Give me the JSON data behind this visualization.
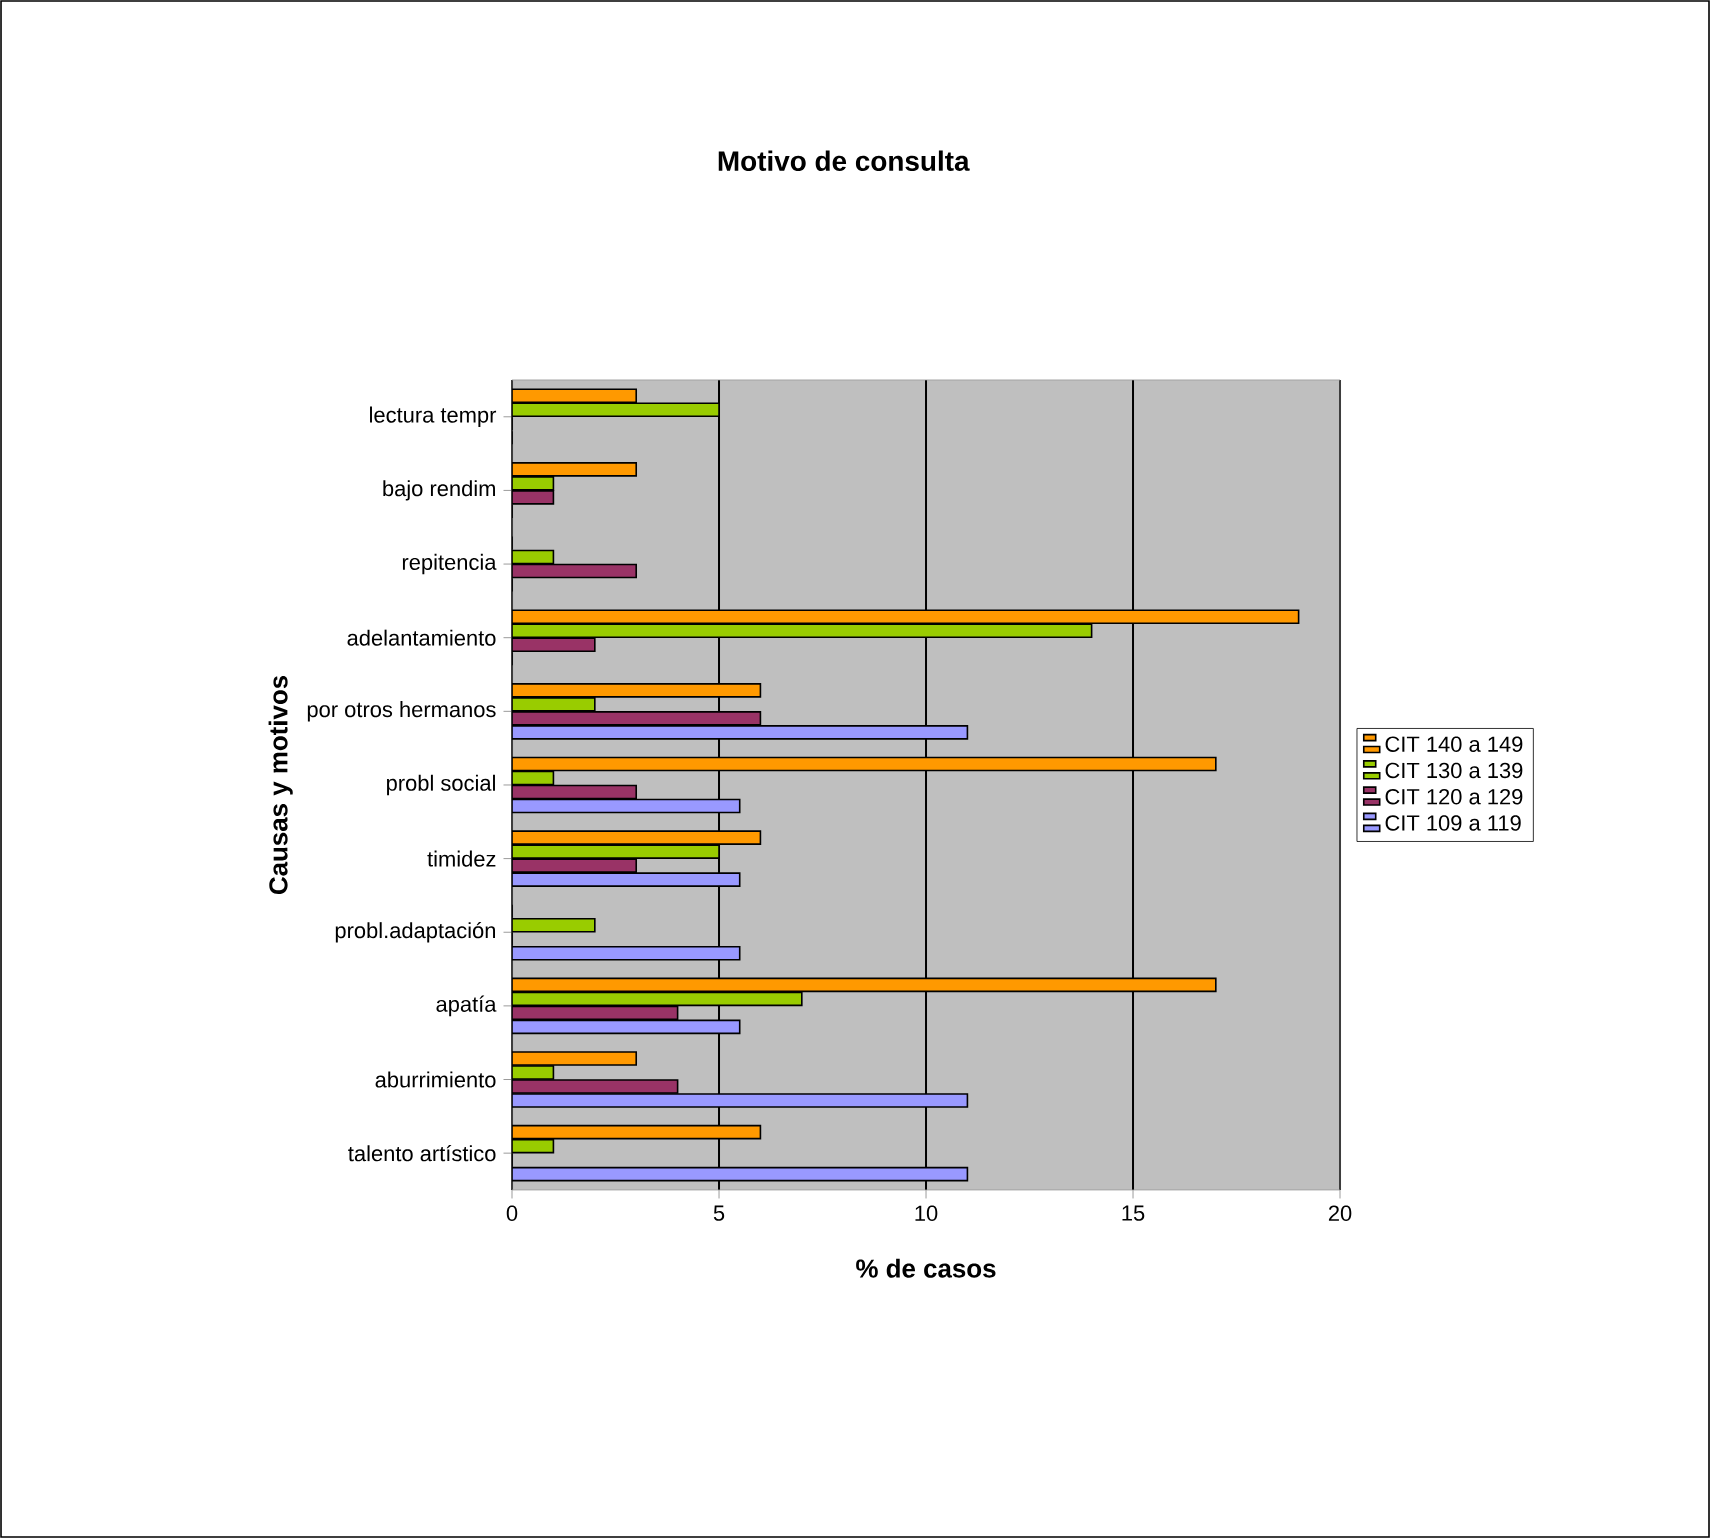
{
  "chart_data": {
    "type": "bar",
    "orientation": "horizontal",
    "title": "Motivo de consulta",
    "xlabel": "% de casos",
    "ylabel": "Causas y motivos",
    "categories": [
      "lectura tempr",
      "bajo rendim",
      "repitencia",
      "adelantamiento",
      "por otros hermanos",
      "probl social",
      "timidez",
      "probl.adaptación",
      "apatía",
      "aburrimiento",
      "talento artístico"
    ],
    "series": [
      {
        "name": "CIT 140 a 149",
        "color": "#ff9900",
        "values": [
          3,
          3,
          0,
          19,
          6,
          17,
          6,
          0,
          17,
          3,
          6
        ]
      },
      {
        "name": "CIT 130 a 139",
        "color": "#99cc00",
        "values": [
          5,
          1,
          1,
          14,
          2,
          1,
          5,
          2,
          7,
          1,
          1
        ]
      },
      {
        "name": "CIT 120 a 129",
        "color": "#993366",
        "values": [
          0,
          1,
          3,
          2,
          6,
          3,
          3,
          0,
          4,
          4,
          0
        ]
      },
      {
        "name": "CIT 109 a 119",
        "color": "#9999ff",
        "values": [
          0,
          0,
          0,
          0,
          11,
          5.5,
          5.5,
          5.5,
          5.5,
          11,
          11
        ]
      }
    ],
    "xlim": [
      0,
      20
    ],
    "xticks": [
      0,
      5,
      10,
      15,
      20
    ],
    "grid": "x",
    "legend": "right"
  }
}
